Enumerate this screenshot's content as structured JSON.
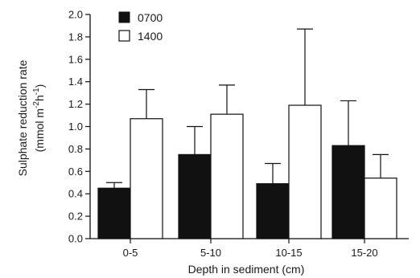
{
  "chart_data": {
    "type": "bar",
    "title": "",
    "xlabel": "Depth in sediment (cm)",
    "ylabel": "Sulphate reduction rate",
    "ylabel_unit": {
      "open": "(mmol m",
      "m_exp": "-2",
      "h": "h",
      "h_exp": "-1",
      "close": ")"
    },
    "categories": [
      "0-5",
      "5-10",
      "10-15",
      "15-20"
    ],
    "ylim": [
      0,
      2.0
    ],
    "yticks": [
      "0.0",
      "0.2",
      "0.4",
      "0.6",
      "0.8",
      "1.0",
      "1.2",
      "1.4",
      "1.6",
      "1.8",
      "2.0"
    ],
    "grid": false,
    "legend_position": "top-left",
    "series": [
      {
        "name": "0700",
        "fill": "#111111",
        "values": [
          0.45,
          0.75,
          0.49,
          0.83
        ],
        "error": [
          0.05,
          0.25,
          0.18,
          0.4
        ]
      },
      {
        "name": "1400",
        "fill": "#ffffff",
        "values": [
          1.07,
          1.11,
          1.19,
          0.54
        ],
        "error": [
          0.26,
          0.26,
          0.68,
          0.21
        ]
      }
    ]
  }
}
